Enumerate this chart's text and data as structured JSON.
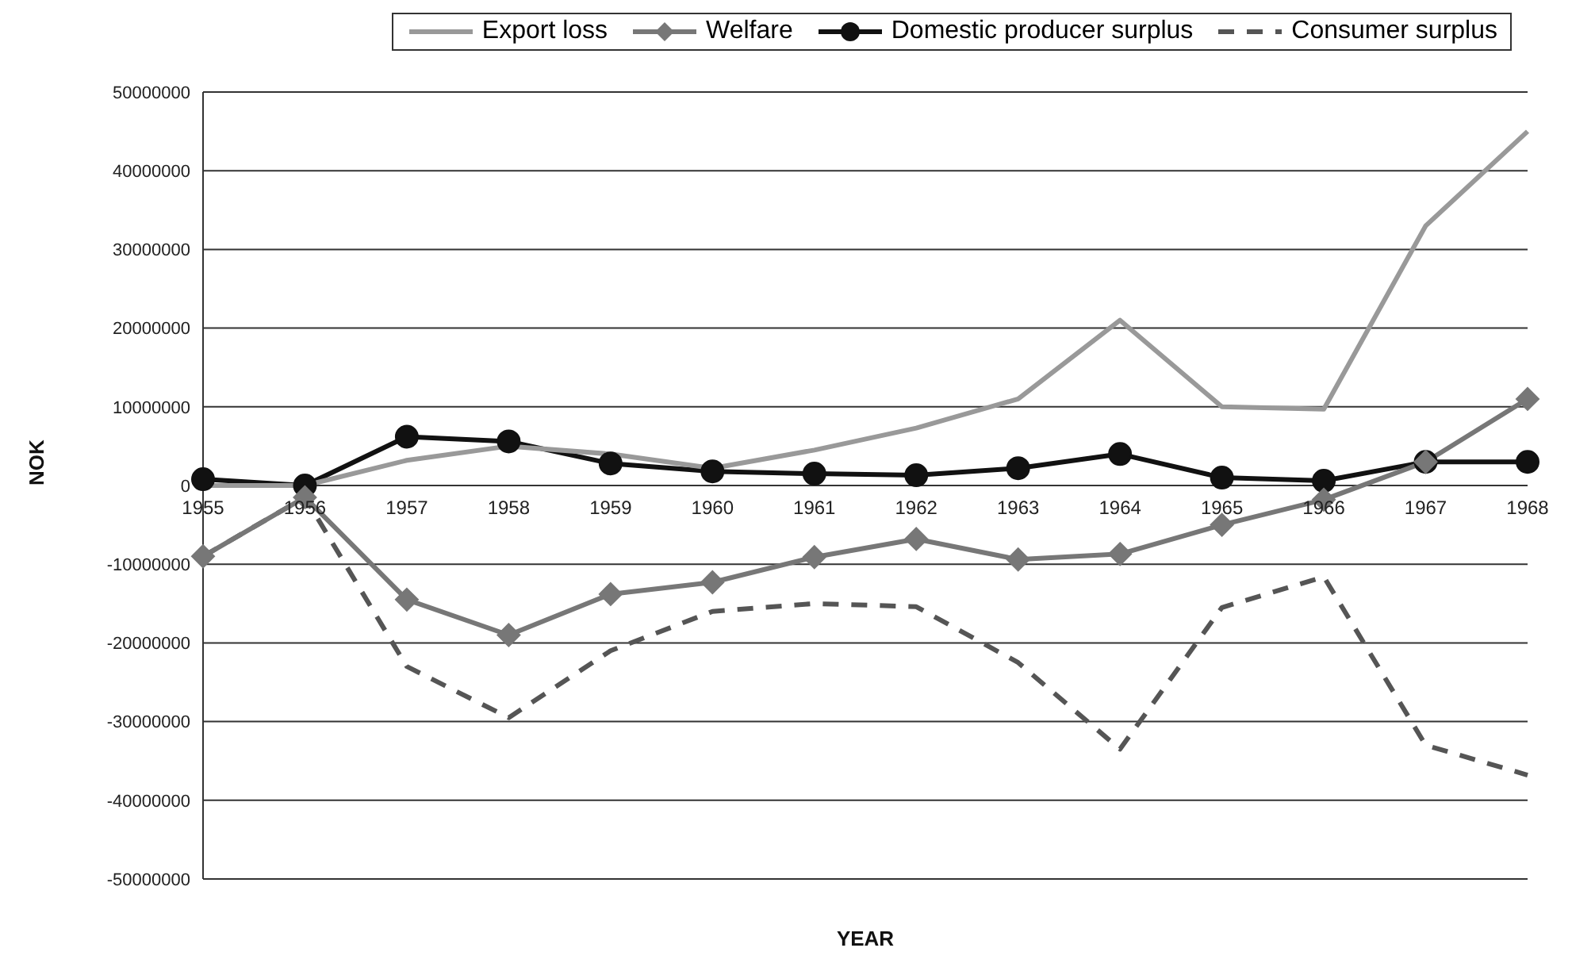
{
  "chart_data": {
    "type": "line",
    "xlabel": "YEAR",
    "ylabel": "NOK",
    "categories": [
      "1955",
      "1956",
      "1957",
      "1958",
      "1959",
      "1960",
      "1961",
      "1962",
      "1963",
      "1964",
      "1965",
      "1966",
      "1967",
      "1968"
    ],
    "series": [
      {
        "name": "Export loss",
        "color": "#999999",
        "marker": "none",
        "line_style": "solid",
        "values": [
          0,
          0,
          3200000,
          5000000,
          4000000,
          2200000,
          4500000,
          7300000,
          11000000,
          21000000,
          10000000,
          9700000,
          33000000,
          45000000
        ]
      },
      {
        "name": "Welfare",
        "color": "#777777",
        "marker": "diamond",
        "line_style": "solid",
        "values": [
          -9000000,
          -1500000,
          -14500000,
          -19000000,
          -13800000,
          -12300000,
          -9100000,
          -6800000,
          -9400000,
          -8700000,
          -5000000,
          -1800000,
          3000000,
          11000000
        ]
      },
      {
        "name": "Domestic producer surplus",
        "color": "#111111",
        "marker": "circle",
        "line_style": "solid",
        "values": [
          800000,
          0,
          6200000,
          5600000,
          2800000,
          1800000,
          1500000,
          1300000,
          2200000,
          4000000,
          1000000,
          600000,
          3000000,
          3000000
        ]
      },
      {
        "name": "Consumer surplus",
        "color": "#555555",
        "marker": "none",
        "line_style": "dashed",
        "values": [
          -9000000,
          -1500000,
          -23000000,
          -29500000,
          -21000000,
          -16000000,
          -15000000,
          -15400000,
          -22500000,
          -33500000,
          -15500000,
          -11600000,
          -33000000,
          -36800000
        ]
      }
    ],
    "ylim": [
      -50000000,
      50000000
    ],
    "yticks": [
      -50000000,
      -40000000,
      -30000000,
      -20000000,
      -10000000,
      0,
      10000000,
      20000000,
      30000000,
      40000000,
      50000000
    ],
    "grid": "y",
    "legend": "top"
  }
}
